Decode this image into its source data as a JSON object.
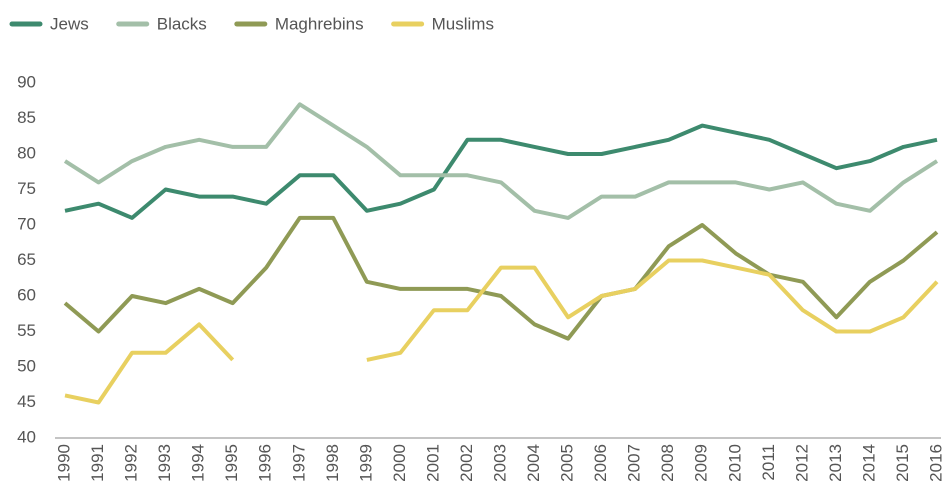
{
  "chart_data": {
    "type": "line",
    "categories": [
      "1990",
      "1991",
      "1992",
      "1993",
      "1994",
      "1995",
      "1996",
      "1997",
      "1998",
      "1999",
      "2000",
      "2001",
      "2002",
      "2003",
      "2004",
      "2005",
      "2006",
      "2007",
      "2008",
      "2009",
      "2010",
      "2011",
      "2012",
      "2013",
      "2014",
      "2015",
      "2016"
    ],
    "series": [
      {
        "name": "Jews",
        "color": "#3d8a6e",
        "values": [
          72,
          73,
          71,
          75,
          74,
          74,
          73,
          77,
          77,
          72,
          73,
          75,
          82,
          82,
          81,
          80,
          80,
          81,
          82,
          84,
          83,
          82,
          80,
          78,
          79,
          81,
          82
        ]
      },
      {
        "name": "Blacks",
        "color": "#a3bfa8",
        "values": [
          79,
          76,
          79,
          81,
          82,
          81,
          81,
          87,
          84,
          81,
          77,
          77,
          77,
          76,
          72,
          71,
          74,
          74,
          76,
          76,
          76,
          75,
          76,
          73,
          72,
          76,
          79
        ]
      },
      {
        "name": "Maghrebins",
        "color": "#8f9a55",
        "values": [
          59,
          55,
          60,
          59,
          61,
          59,
          64,
          71,
          71,
          62,
          61,
          61,
          61,
          60,
          56,
          54,
          60,
          61,
          67,
          70,
          66,
          63,
          62,
          57,
          62,
          65,
          69
        ]
      },
      {
        "name": "Muslims",
        "color": "#e8d060",
        "values": [
          46,
          45,
          52,
          52,
          56,
          51,
          null,
          null,
          null,
          51,
          52,
          58,
          58,
          64,
          64,
          57,
          60,
          61,
          65,
          65,
          64,
          63,
          58,
          55,
          55,
          57,
          62
        ]
      }
    ],
    "ylim": [
      40,
      90
    ],
    "yticks": [
      40,
      45,
      50,
      55,
      60,
      65,
      70,
      75,
      80,
      85,
      90
    ],
    "grid": false,
    "legend": "top-left"
  }
}
